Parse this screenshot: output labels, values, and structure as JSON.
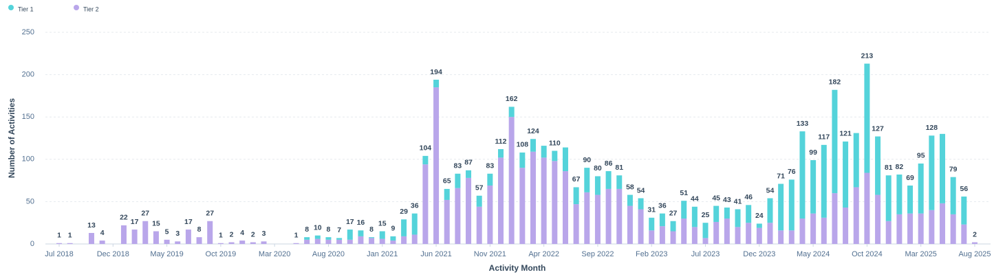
{
  "chart_data": {
    "type": "stacked_bar",
    "x_label": "Activity Month",
    "y_label": "Number of Activities",
    "categories": [
      "Jul 2018",
      null,
      null,
      null,
      null,
      "Dec 2018",
      null,
      null,
      null,
      null,
      "May 2019",
      null,
      null,
      null,
      null,
      "Oct 2019",
      null,
      null,
      null,
      null,
      "Mar 2020",
      null,
      null,
      null,
      null,
      "Aug 2020",
      null,
      null,
      null,
      null,
      "Jan 2021",
      null,
      null,
      null,
      null,
      "Jun 2021",
      null,
      null,
      null,
      null,
      "Nov 2021",
      null,
      null,
      null,
      null,
      "Apr 2022",
      null,
      null,
      null,
      null,
      "Sep 2022",
      null,
      null,
      null,
      null,
      "Feb 2023",
      null,
      null,
      null,
      null,
      "Jul 2023",
      null,
      null,
      null,
      null,
      "Dec 2023",
      null,
      null,
      null,
      null,
      "May 2024",
      null,
      null,
      null,
      null,
      "Oct 2024",
      null,
      null,
      null,
      null,
      "Mar 2025",
      null,
      null,
      null,
      null,
      "Aug 2025"
    ],
    "series": [
      {
        "name": "Tier 2",
        "color": "#b9a6ea",
        "values": [
          1,
          1,
          0,
          13,
          4,
          0,
          22,
          17,
          27,
          15,
          5,
          3,
          17,
          8,
          27,
          1,
          2,
          4,
          2,
          3,
          0,
          0,
          1,
          5,
          6,
          5,
          5,
          5,
          9,
          7,
          6,
          4,
          9,
          11,
          94,
          185,
          52,
          66,
          78,
          44,
          69,
          102,
          150,
          90,
          109,
          102,
          98,
          86,
          47,
          61,
          58,
          65,
          65,
          45,
          41,
          16,
          21,
          15,
          30,
          20,
          7,
          26,
          30,
          20,
          25,
          19,
          25,
          16,
          16,
          30,
          36,
          31,
          60,
          43,
          67,
          84,
          58,
          27,
          35,
          36,
          36,
          40,
          48,
          35,
          23,
          2
        ]
      },
      {
        "name": "Tier 1",
        "color": "#54d3da",
        "values": [
          0,
          0,
          0,
          0,
          0,
          0,
          0,
          0,
          0,
          0,
          0,
          0,
          0,
          0,
          0,
          0,
          0,
          0,
          0,
          0,
          0,
          0,
          0,
          3,
          4,
          3,
          2,
          12,
          7,
          1,
          9,
          5,
          20,
          25,
          10,
          9,
          13,
          17,
          9,
          13,
          14,
          10,
          12,
          18,
          15,
          14,
          12,
          28,
          20,
          29,
          22,
          21,
          16,
          13,
          13,
          15,
          15,
          12,
          21,
          24,
          18,
          19,
          13,
          21,
          21,
          5,
          29,
          55,
          60,
          103,
          63,
          86,
          122,
          78,
          64,
          129,
          69,
          54,
          47,
          33,
          59,
          88,
          82,
          44,
          33,
          0
        ]
      }
    ],
    "totals": [
      1,
      1,
      null,
      13,
      4,
      null,
      22,
      17,
      27,
      15,
      5,
      3,
      17,
      8,
      27,
      1,
      2,
      4,
      2,
      3,
      null,
      null,
      1,
      8,
      10,
      8,
      7,
      17,
      16,
      8,
      15,
      9,
      29,
      36,
      104,
      194,
      65,
      83,
      87,
      57,
      83,
      112,
      162,
      108,
      124,
      null,
      110,
      null,
      67,
      90,
      80,
      86,
      81,
      58,
      54,
      31,
      36,
      27,
      51,
      44,
      25,
      45,
      43,
      41,
      46,
      24,
      54,
      71,
      76,
      133,
      99,
      117,
      182,
      121,
      null,
      213,
      127,
      81,
      82,
      69,
      95,
      128,
      null,
      79,
      56,
      2
    ],
    "legend_order": [
      1,
      0
    ],
    "ylim": [
      0,
      250
    ],
    "yticks": [
      0,
      50,
      100,
      150,
      200,
      250
    ],
    "grid": true
  }
}
